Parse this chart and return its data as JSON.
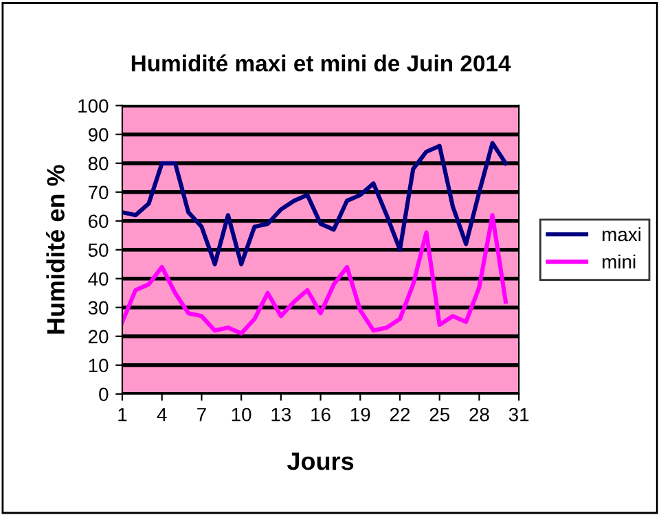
{
  "chart_data": {
    "type": "line",
    "title": "Humidité maxi et mini de Juin 2014",
    "xlabel": "Jours",
    "ylabel": "Humidité en %",
    "x": [
      1,
      2,
      3,
      4,
      5,
      6,
      7,
      8,
      9,
      10,
      11,
      12,
      13,
      14,
      15,
      16,
      17,
      18,
      19,
      20,
      21,
      22,
      23,
      24,
      25,
      26,
      27,
      28,
      29,
      30
    ],
    "series": [
      {
        "name": "maxi",
        "color": "#000080",
        "values": [
          63,
          62,
          66,
          80,
          80,
          63,
          58,
          45,
          62,
          45,
          58,
          59,
          64,
          67,
          69,
          59,
          57,
          67,
          69,
          73,
          62,
          50,
          78,
          84,
          86,
          65,
          52,
          70,
          87,
          80
        ]
      },
      {
        "name": "mini",
        "color": "#ff00ff",
        "values": [
          25,
          36,
          38,
          44,
          35,
          28,
          27,
          22,
          23,
          21,
          26,
          35,
          27,
          32,
          36,
          28,
          38,
          44,
          29,
          22,
          23,
          26,
          38,
          56,
          24,
          27,
          25,
          37,
          62,
          32
        ]
      }
    ],
    "xlim": [
      1,
      31
    ],
    "xticks": [
      1,
      4,
      7,
      10,
      13,
      16,
      19,
      22,
      25,
      28,
      31
    ],
    "ylim": [
      0,
      100
    ],
    "yticks": [
      0,
      10,
      20,
      30,
      40,
      50,
      60,
      70,
      80,
      90,
      100
    ],
    "grid": "y",
    "legend": "right",
    "marker": "none",
    "line_style": "solid"
  }
}
